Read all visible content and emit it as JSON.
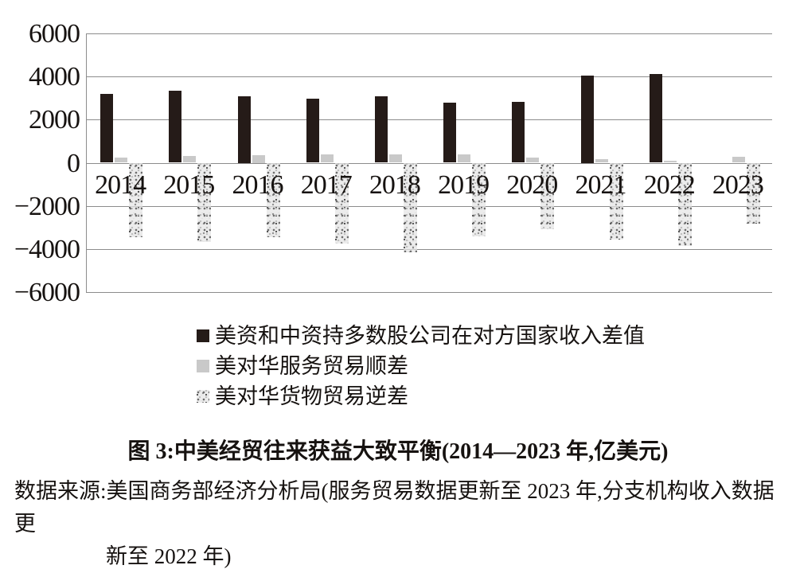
{
  "figure": {
    "caption": "图 3:中美经贸往来获益大致平衡(2014—2023 年,亿美元)",
    "source_line1": "数据来源:美国商务部经济分析局(服务贸易数据更新至 2023 年,分支机构收入数据更",
    "source_line2": "新至 2022 年)"
  },
  "chart_data": {
    "type": "bar",
    "title": "图 3:中美经贸往来获益大致平衡(2014—2023 年,亿美元)",
    "unit": "亿美元",
    "categories": [
      "2014",
      "2015",
      "2016",
      "2017",
      "2018",
      "2019",
      "2020",
      "2021",
      "2022",
      "2023"
    ],
    "series": [
      {
        "key": "income-gap",
        "name": "美资和中资持多数股公司在对方国家收入差值",
        "style": "solid-black",
        "color": "#251b18",
        "values": [
          3200,
          3330,
          3100,
          2980,
          3080,
          2800,
          2840,
          4060,
          4130,
          null
        ]
      },
      {
        "key": "services-surplus",
        "name": "美对华服务贸易顺差",
        "style": "solid-gray",
        "color": "#c9c9c9",
        "values": [
          230,
          300,
          370,
          380,
          380,
          400,
          250,
          170,
          100,
          270
        ]
      },
      {
        "key": "goods-deficit",
        "name": "美对华货物贸易逆差",
        "style": "speckled",
        "color": "#e4e4e4",
        "values": [
          -3440,
          -3660,
          -3450,
          -3760,
          -4150,
          -3430,
          -3090,
          -3560,
          -3840,
          -2820
        ]
      }
    ],
    "ylim": [
      -6000,
      6000
    ],
    "ytick_interval": 2000,
    "yticks": [
      6000,
      4000,
      2000,
      0,
      -2000,
      -4000,
      -6000
    ],
    "ytick_labels": [
      "6000",
      "4000",
      "2000",
      "0",
      "−2000",
      "−4000",
      "−6000"
    ],
    "grid": true,
    "legend_position": "below-left"
  }
}
